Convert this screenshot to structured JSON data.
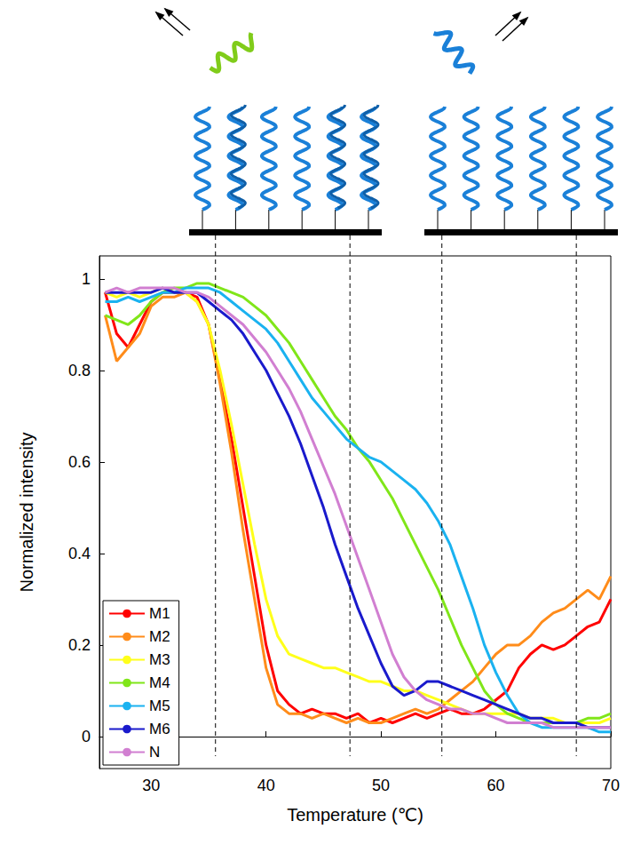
{
  "chart_data": {
    "type": "line",
    "x_label": "Temperature (℃)",
    "y_label": "Normalized intensity",
    "xlim": [
      25.5,
      70
    ],
    "xticks": [
      30,
      40,
      50,
      60,
      70
    ],
    "ylim": [
      -0.07,
      1.05
    ],
    "yticks": [
      0,
      0.2,
      0.4,
      0.6,
      0.8,
      1
    ],
    "grid": false,
    "legend": "lower left",
    "reference_lines": [
      35.6,
      47.3,
      55.3,
      67.0
    ],
    "x": [
      26,
      27,
      28,
      29,
      30,
      31,
      32,
      33,
      34,
      35,
      36,
      37,
      38,
      39,
      40,
      41,
      42,
      43,
      44,
      45,
      46,
      47,
      48,
      49,
      50,
      51,
      52,
      53,
      54,
      55,
      56,
      57,
      58,
      59,
      60,
      61,
      62,
      63,
      64,
      65,
      66,
      67,
      68,
      69,
      70
    ],
    "series": [
      {
        "name": "M1",
        "color": "#ff0000",
        "values": [
          0.97,
          0.88,
          0.85,
          0.9,
          0.95,
          0.97,
          0.97,
          0.97,
          0.96,
          0.9,
          0.78,
          0.65,
          0.5,
          0.35,
          0.2,
          0.1,
          0.07,
          0.05,
          0.06,
          0.05,
          0.05,
          0.04,
          0.05,
          0.03,
          0.04,
          0.03,
          0.04,
          0.05,
          0.04,
          0.05,
          0.06,
          0.05,
          0.05,
          0.06,
          0.08,
          0.1,
          0.15,
          0.18,
          0.2,
          0.19,
          0.2,
          0.22,
          0.24,
          0.25,
          0.3
        ]
      },
      {
        "name": "M2",
        "color": "#ff8c1a",
        "values": [
          0.92,
          0.82,
          0.85,
          0.88,
          0.94,
          0.96,
          0.96,
          0.97,
          0.95,
          0.9,
          0.77,
          0.62,
          0.45,
          0.3,
          0.15,
          0.07,
          0.05,
          0.05,
          0.04,
          0.05,
          0.04,
          0.03,
          0.04,
          0.03,
          0.03,
          0.04,
          0.05,
          0.06,
          0.05,
          0.06,
          0.08,
          0.1,
          0.12,
          0.15,
          0.18,
          0.2,
          0.2,
          0.22,
          0.25,
          0.27,
          0.28,
          0.3,
          0.32,
          0.3,
          0.35
        ]
      },
      {
        "name": "M3",
        "color": "#ffff1a",
        "values": [
          0.97,
          0.96,
          0.97,
          0.96,
          0.97,
          0.98,
          0.97,
          0.97,
          0.95,
          0.9,
          0.8,
          0.68,
          0.55,
          0.42,
          0.3,
          0.22,
          0.18,
          0.17,
          0.16,
          0.15,
          0.15,
          0.14,
          0.13,
          0.12,
          0.12,
          0.11,
          0.1,
          0.1,
          0.09,
          0.08,
          0.07,
          0.06,
          0.05,
          0.05,
          0.05,
          0.05,
          0.05,
          0.04,
          0.04,
          0.04,
          0.03,
          0.03,
          0.03,
          0.03,
          0.04
        ]
      },
      {
        "name": "M4",
        "color": "#80e619",
        "values": [
          0.92,
          0.91,
          0.9,
          0.92,
          0.95,
          0.97,
          0.98,
          0.98,
          0.99,
          0.99,
          0.98,
          0.97,
          0.96,
          0.94,
          0.92,
          0.89,
          0.86,
          0.82,
          0.78,
          0.74,
          0.7,
          0.67,
          0.63,
          0.6,
          0.56,
          0.52,
          0.47,
          0.42,
          0.37,
          0.32,
          0.26,
          0.2,
          0.15,
          0.1,
          0.07,
          0.05,
          0.04,
          0.03,
          0.03,
          0.03,
          0.03,
          0.03,
          0.04,
          0.04,
          0.05
        ]
      },
      {
        "name": "M5",
        "color": "#1ab2f0",
        "values": [
          0.95,
          0.95,
          0.96,
          0.95,
          0.96,
          0.97,
          0.97,
          0.98,
          0.98,
          0.98,
          0.97,
          0.95,
          0.93,
          0.91,
          0.89,
          0.86,
          0.82,
          0.78,
          0.74,
          0.71,
          0.68,
          0.65,
          0.63,
          0.61,
          0.6,
          0.58,
          0.56,
          0.54,
          0.51,
          0.47,
          0.42,
          0.35,
          0.28,
          0.2,
          0.14,
          0.09,
          0.05,
          0.03,
          0.02,
          0.02,
          0.02,
          0.02,
          0.02,
          0.01,
          0.01
        ]
      },
      {
        "name": "M6",
        "color": "#1a1acc",
        "values": [
          0.97,
          0.97,
          0.97,
          0.97,
          0.97,
          0.98,
          0.97,
          0.97,
          0.97,
          0.95,
          0.93,
          0.91,
          0.88,
          0.84,
          0.8,
          0.75,
          0.7,
          0.64,
          0.57,
          0.5,
          0.42,
          0.35,
          0.28,
          0.22,
          0.16,
          0.11,
          0.09,
          0.1,
          0.12,
          0.12,
          0.11,
          0.1,
          0.09,
          0.08,
          0.07,
          0.06,
          0.05,
          0.04,
          0.04,
          0.03,
          0.03,
          0.03,
          0.02,
          0.02,
          0.02
        ]
      },
      {
        "name": "N",
        "color": "#d17fd1",
        "values": [
          0.97,
          0.98,
          0.97,
          0.98,
          0.98,
          0.98,
          0.98,
          0.97,
          0.97,
          0.96,
          0.94,
          0.92,
          0.9,
          0.87,
          0.84,
          0.8,
          0.76,
          0.71,
          0.65,
          0.59,
          0.53,
          0.46,
          0.39,
          0.32,
          0.25,
          0.18,
          0.13,
          0.1,
          0.08,
          0.07,
          0.06,
          0.06,
          0.05,
          0.05,
          0.04,
          0.03,
          0.03,
          0.03,
          0.03,
          0.02,
          0.02,
          0.02,
          0.02,
          0.02,
          0.02
        ]
      }
    ]
  }
}
